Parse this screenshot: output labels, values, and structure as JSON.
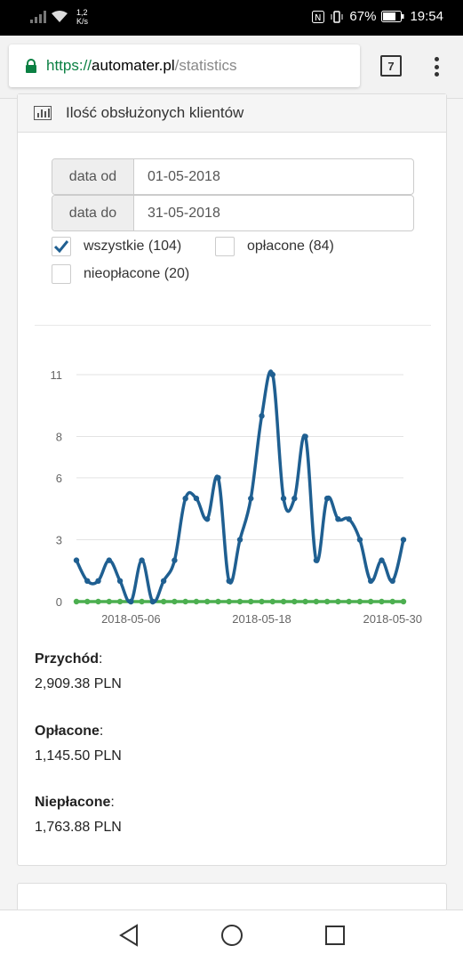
{
  "status_bar": {
    "speed_value": "1,2",
    "speed_unit": "K/s",
    "battery": "67%",
    "time": "19:54"
  },
  "browser": {
    "url_scheme": "https://",
    "url_domain": "automater.pl",
    "url_path": "/statistics",
    "tab_count": "7"
  },
  "panel": {
    "title": "Ilość obsłużonych klientów",
    "date_from_label": "data od",
    "date_from_value": "01-05-2018",
    "date_to_label": "data do",
    "date_to_value": "31-05-2018",
    "filters": [
      {
        "label": "wszystkie (104)",
        "checked": true
      },
      {
        "label": "opłacone (84)",
        "checked": false
      },
      {
        "label": "nieopłacone (20)",
        "checked": false
      }
    ]
  },
  "chart_data": {
    "type": "line",
    "x_ticks": [
      "2018-05-06",
      "2018-05-18",
      "2018-05-30"
    ],
    "y_ticks": [
      0,
      3,
      6,
      8,
      11
    ],
    "ylim": [
      0,
      11
    ],
    "grid": true,
    "series": [
      {
        "color": "#1f5f91",
        "values": [
          2,
          1,
          1,
          2,
          1,
          0,
          2,
          0,
          1,
          2,
          5,
          5,
          4,
          6,
          1,
          3,
          5,
          9,
          11,
          5,
          5,
          8,
          2,
          5,
          4,
          4,
          3,
          1,
          2,
          1,
          3
        ]
      },
      {
        "color": "#4caf50",
        "values": [
          0,
          0,
          0,
          0,
          0,
          0,
          0,
          0,
          0,
          0,
          0,
          0,
          0,
          0,
          0,
          0,
          0,
          0,
          0,
          0,
          0,
          0,
          0,
          0,
          0,
          0,
          0,
          0,
          0,
          0,
          0
        ]
      }
    ]
  },
  "stats": [
    {
      "label": "Przychód",
      "value": "2,909.38 PLN"
    },
    {
      "label": "Opłacone",
      "value": "1,145.50 PLN"
    },
    {
      "label": "Niepłacone",
      "value": "1,763.88 PLN"
    }
  ]
}
